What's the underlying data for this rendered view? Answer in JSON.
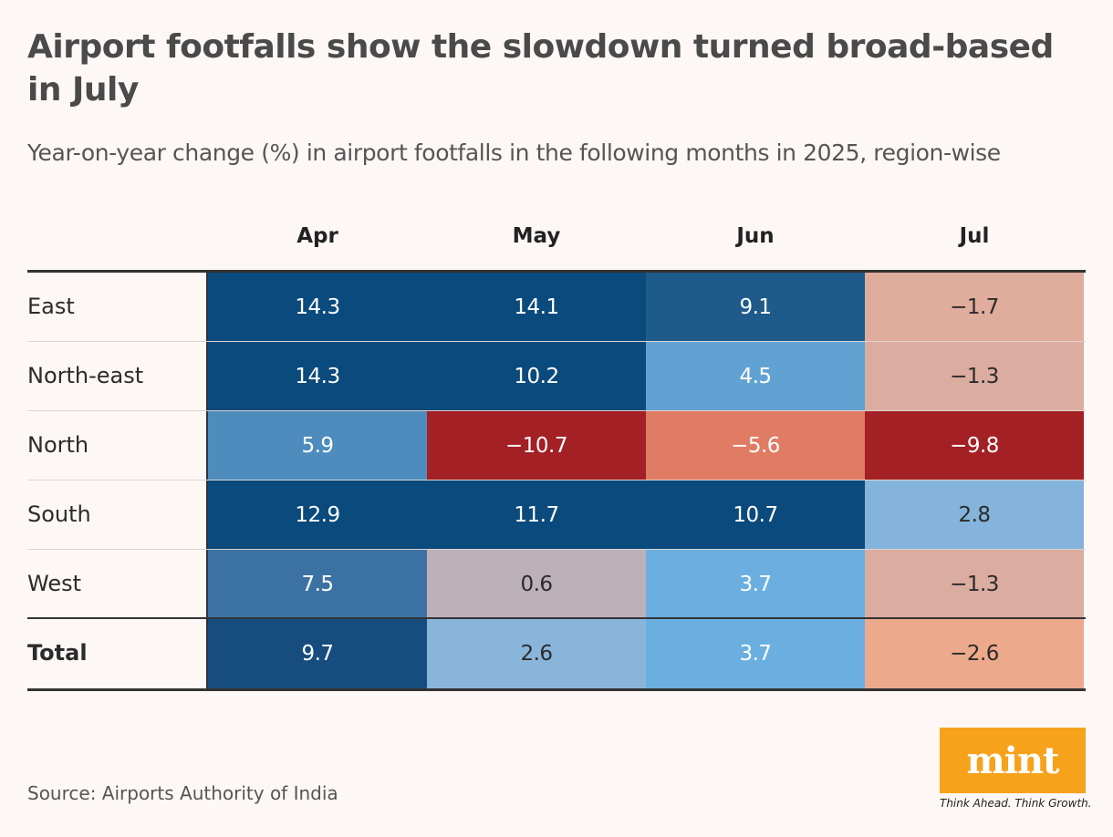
{
  "title": "Airport footfalls show the slowdown turned broad-based in July",
  "subtitle": "Year-on-year change (%) in airport footfalls in the following months in 2025, region-wise",
  "source": "Source: Airports Authority of India",
  "logo": {
    "text": "mint",
    "tagline": "Think Ahead. Think Growth.",
    "color": "#f7a21b"
  },
  "chart_data": {
    "type": "heatmap",
    "columns": [
      "Apr",
      "May",
      "Jun",
      "Jul"
    ],
    "rows": [
      {
        "label": "East",
        "values": [
          "14.3",
          "14.1",
          "9.1",
          "−1.7"
        ],
        "colors": [
          "#0b4a7c",
          "#0b4a7c",
          "#1e5a8a",
          "#e0ac9b"
        ],
        "text": [
          "light",
          "light",
          "light",
          "dark"
        ]
      },
      {
        "label": "North-east",
        "values": [
          "14.3",
          "10.2",
          "4.5",
          "−1.3"
        ],
        "colors": [
          "#0b4a7c",
          "#0b4a7c",
          "#62a2d2",
          "#dbaca0"
        ],
        "text": [
          "light",
          "light",
          "light",
          "dark"
        ]
      },
      {
        "label": "North",
        "values": [
          "5.9",
          "−10.7",
          "−5.6",
          "−9.8"
        ],
        "colors": [
          "#4e8cbe",
          "#a32024",
          "#e07b64",
          "#a32024"
        ],
        "text": [
          "light",
          "light",
          "light",
          "light"
        ]
      },
      {
        "label": "South",
        "values": [
          "12.9",
          "11.7",
          "10.7",
          "2.8"
        ],
        "colors": [
          "#0b4a7c",
          "#0b4a7c",
          "#0b4a7c",
          "#84b4db"
        ],
        "text": [
          "light",
          "light",
          "light",
          "dark"
        ]
      },
      {
        "label": "West",
        "values": [
          "7.5",
          "0.6",
          "3.7",
          "−1.3"
        ],
        "colors": [
          "#3c72a3",
          "#bdb1b9",
          "#6aafe0",
          "#dbaca0"
        ],
        "text": [
          "light",
          "dark",
          "light",
          "dark"
        ]
      },
      {
        "label": "Total",
        "values": [
          "9.7",
          "2.6",
          "3.7",
          "−2.6"
        ],
        "colors": [
          "#164c7e",
          "#8ab5db",
          "#6aafe0",
          "#eda98b"
        ],
        "text": [
          "light",
          "dark",
          "light",
          "dark"
        ],
        "bold": true
      }
    ]
  }
}
